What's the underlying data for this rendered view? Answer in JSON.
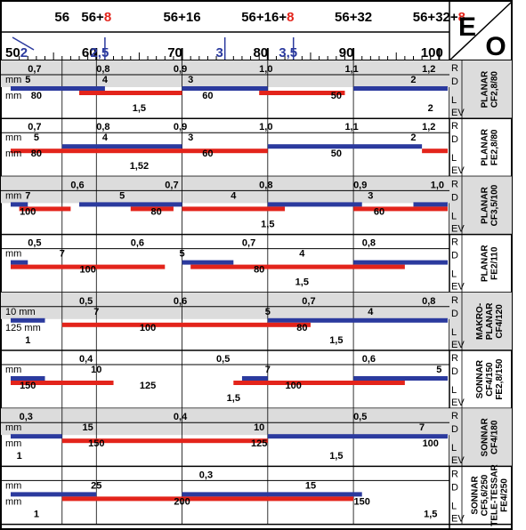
{
  "header": {
    "top_marks": [
      {
        "x": 56,
        "base": "56",
        "suffix": ""
      },
      {
        "x": 60,
        "base": "56+",
        "suffix": "8"
      },
      {
        "x": 70,
        "base": "56+16",
        "suffix": ""
      },
      {
        "x": 80,
        "base": "56+16+",
        "suffix": "8"
      },
      {
        "x": 90,
        "base": "56+32",
        "suffix": ""
      },
      {
        "x": 100,
        "base": "56+32+",
        "suffix": "8"
      }
    ],
    "scale_start_black": "50",
    "scale_start_blue": "2",
    "scale_ticks": [
      {
        "v": 60,
        "t": "60"
      },
      {
        "v": 70,
        "t": "70"
      },
      {
        "v": 80,
        "t": "80"
      },
      {
        "v": 90,
        "t": "90"
      },
      {
        "v": 100,
        "t": "100"
      }
    ],
    "blue_marks": [
      {
        "v": 61,
        "t": "2,5"
      },
      {
        "v": 75,
        "t": "3"
      },
      {
        "v": 83,
        "t": "3,5"
      }
    ],
    "corner_top": "E",
    "corner_bottom": "O"
  },
  "row_side_labels": {
    "r": "R",
    "d": "D",
    "l": "L",
    "ev": "EV"
  },
  "colors": {
    "red": "#e3241b",
    "blue": "#2b3a9e",
    "grey": "#dcdcdc"
  },
  "lenses": [
    {
      "name": "PLANAR CF2,8/80",
      "lines": [
        "PLANAR",
        "CF2,8/80"
      ],
      "grey": true,
      "r": [
        {
          "v": 53,
          "t": "0,7"
        },
        {
          "v": 61,
          "t": "0,8"
        },
        {
          "v": 70,
          "t": "0,9"
        },
        {
          "v": 80,
          "t": "1,0"
        },
        {
          "v": 90,
          "t": "1,1"
        },
        {
          "v": 99,
          "t": "1,2"
        }
      ],
      "mmD": "mm",
      "d": [
        {
          "v": 52,
          "t": "5"
        },
        {
          "v": 61,
          "t": "4"
        },
        {
          "v": 71,
          "t": "3"
        },
        {
          "v": 97,
          "t": "2"
        }
      ],
      "mmL": "mm",
      "l": [
        {
          "v": 53,
          "t": "80"
        },
        {
          "v": 73,
          "t": "60"
        },
        {
          "v": 88,
          "t": "50"
        }
      ],
      "ev": [
        {
          "v": 65,
          "t": "1,5"
        },
        {
          "v": 99,
          "t": "2"
        }
      ],
      "blue": [
        [
          50,
          61
        ],
        [
          70,
          80
        ],
        [
          90,
          101
        ]
      ],
      "red": [
        [
          58,
          70
        ],
        [
          79,
          89
        ]
      ]
    },
    {
      "name": "PLANAR FE2,8/80",
      "lines": [
        "PLANAR",
        "FE2,8/80"
      ],
      "grey": false,
      "r": [
        {
          "v": 53,
          "t": "0,7"
        },
        {
          "v": 61,
          "t": "0,8"
        },
        {
          "v": 70,
          "t": "0,9"
        },
        {
          "v": 80,
          "t": "1,0"
        },
        {
          "v": 90,
          "t": "1,1"
        },
        {
          "v": 99,
          "t": "1,2"
        }
      ],
      "mmD": "mm",
      "d": [
        {
          "v": 53,
          "t": "5"
        },
        {
          "v": 61,
          "t": "4"
        },
        {
          "v": 71,
          "t": "3"
        },
        {
          "v": 97,
          "t": "2"
        }
      ],
      "mmL": "mm",
      "l": [
        {
          "v": 53,
          "t": "80"
        },
        {
          "v": 73,
          "t": "60"
        },
        {
          "v": 88,
          "t": "50"
        }
      ],
      "ev": [
        {
          "v": 65,
          "t": "1,52"
        }
      ],
      "blue": [
        [
          56,
          70
        ],
        [
          80,
          98
        ]
      ],
      "red": [
        [
          50,
          80
        ],
        [
          98,
          101
        ]
      ]
    },
    {
      "name": "PLANAR CF3,5/100",
      "lines": [
        "PLANAR",
        "CF3,5/100"
      ],
      "grey": true,
      "r": [
        {
          "v": 58,
          "t": "0,6"
        },
        {
          "v": 69,
          "t": "0,7"
        },
        {
          "v": 80,
          "t": "0,8"
        },
        {
          "v": 91,
          "t": "0,9"
        },
        {
          "v": 100,
          "t": "1,0"
        }
      ],
      "mmD": "mm",
      "d": [
        {
          "v": 52,
          "t": "7"
        },
        {
          "v": 63,
          "t": "5"
        },
        {
          "v": 76,
          "t": "4"
        },
        {
          "v": 92,
          "t": "3"
        }
      ],
      "mmL": "",
      "l": [
        {
          "v": 52,
          "t": "100"
        },
        {
          "v": 67,
          "t": "80"
        },
        {
          "v": 93,
          "t": "60"
        }
      ],
      "ev": [
        {
          "v": 80,
          "t": "1,5"
        }
      ],
      "blue": [
        [
          50,
          52
        ],
        [
          58,
          70
        ],
        [
          80,
          91
        ],
        [
          97,
          101
        ]
      ],
      "red": [
        [
          51,
          57
        ],
        [
          64,
          69
        ],
        [
          70,
          82
        ],
        [
          90,
          101
        ]
      ]
    },
    {
      "name": "PLANAR FE2/110",
      "lines": [
        "PLANAR",
        "FE2/110"
      ],
      "grey": false,
      "r": [
        {
          "v": 53,
          "t": "0,5"
        },
        {
          "v": 65,
          "t": "0,6"
        },
        {
          "v": 78,
          "t": "0,7"
        },
        {
          "v": 92,
          "t": "0,8"
        }
      ],
      "mmD": "mm",
      "d": [
        {
          "v": 56,
          "t": "7"
        },
        {
          "v": 70,
          "t": "5"
        },
        {
          "v": 84,
          "t": "4"
        }
      ],
      "mmL": "",
      "l": [
        {
          "v": 59,
          "t": "100"
        },
        {
          "v": 79,
          "t": "80"
        }
      ],
      "ev": [
        {
          "v": 84,
          "t": "1,5"
        }
      ],
      "blue": [
        [
          50,
          52
        ],
        [
          70,
          76
        ],
        [
          90,
          101
        ]
      ],
      "red": [
        [
          50,
          68
        ],
        [
          71,
          96
        ]
      ]
    },
    {
      "name": "MAKRO-PLANAR CF4/120",
      "lines": [
        "MAKRO-",
        "PLANAR",
        "CF4/120"
      ],
      "grey": true,
      "r": [
        {
          "v": 59,
          "t": "0,5"
        },
        {
          "v": 70,
          "t": "0,6"
        },
        {
          "v": 85,
          "t": "0,7"
        },
        {
          "v": 99,
          "t": "0,8"
        }
      ],
      "mmD": "10 mm",
      "d": [
        {
          "v": 60,
          "t": "7"
        },
        {
          "v": 80,
          "t": "5"
        },
        {
          "v": 92,
          "t": "4"
        }
      ],
      "mmL": "125 mm",
      "l": [
        {
          "v": 66,
          "t": "100"
        },
        {
          "v": 84,
          "t": "80"
        }
      ],
      "ev": [
        {
          "v": 52,
          "t": "1"
        },
        {
          "v": 88,
          "t": "1,5"
        }
      ],
      "blue": [
        [
          50,
          54
        ],
        [
          80,
          101
        ]
      ],
      "red": [
        [
          56,
          85
        ]
      ]
    },
    {
      "name": "SONNAR CF4/150 FE2,8/150",
      "lines": [
        "SONNAR",
        "CF4/150",
        "FE2,8/150"
      ],
      "grey": false,
      "r": [
        {
          "v": 59,
          "t": "0,4"
        },
        {
          "v": 75,
          "t": "0,5"
        },
        {
          "v": 92,
          "t": "0,6"
        }
      ],
      "mmD": "mm",
      "d": [
        {
          "v": 60,
          "t": "10"
        },
        {
          "v": 80,
          "t": "7"
        },
        {
          "v": 100,
          "t": "5"
        }
      ],
      "mmL": "",
      "l": [
        {
          "v": 52,
          "t": "150"
        },
        {
          "v": 66,
          "t": "125"
        },
        {
          "v": 83,
          "t": "100"
        }
      ],
      "ev": [
        {
          "v": 76,
          "t": "1,5"
        }
      ],
      "blue": [
        [
          50,
          54
        ],
        [
          77,
          80
        ],
        [
          90,
          101
        ]
      ],
      "red": [
        [
          50,
          62
        ],
        [
          76,
          96
        ]
      ]
    },
    {
      "name": "SONNAR CF4/180",
      "lines": [
        "SONNAR",
        "CF4/180"
      ],
      "grey": true,
      "r": [
        {
          "v": 52,
          "t": "0,3"
        },
        {
          "v": 70,
          "t": "0,4"
        },
        {
          "v": 91,
          "t": "0,5"
        }
      ],
      "mmD": "mm",
      "d": [
        {
          "v": 59,
          "t": "15"
        },
        {
          "v": 79,
          "t": "10"
        },
        {
          "v": 98,
          "t": "7"
        }
      ],
      "mmL": "mm",
      "l": [
        {
          "v": 60,
          "t": "150"
        },
        {
          "v": 79,
          "t": "125"
        },
        {
          "v": 99,
          "t": "100"
        }
      ],
      "ev": [
        {
          "v": 51,
          "t": "1"
        },
        {
          "v": 88,
          "t": "1,5"
        }
      ],
      "blue": [
        [
          50,
          56
        ],
        [
          80,
          101
        ]
      ],
      "red": [
        [
          56,
          80
        ]
      ]
    },
    {
      "name": "SONNAR CF5,6/250 TELE-TESSAR FE4/250",
      "lines": [
        "SONNAR",
        "CF5,6/250",
        "TELE-TESSAR",
        "FE4/250"
      ],
      "grey": false,
      "r": [
        {
          "v": 73,
          "t": "0,3"
        }
      ],
      "mmD": "mm",
      "d": [
        {
          "v": 60,
          "t": "25"
        },
        {
          "v": 85,
          "t": "15"
        }
      ],
      "mmL": "mm",
      "l": [
        {
          "v": 70,
          "t": "200"
        },
        {
          "v": 91,
          "t": "150"
        }
      ],
      "ev": [
        {
          "v": 53,
          "t": "1"
        },
        {
          "v": 99,
          "t": "1,5"
        }
      ],
      "blue": [
        [
          50,
          60
        ],
        [
          70,
          91
        ]
      ],
      "red": [
        [
          56,
          90
        ]
      ]
    }
  ]
}
